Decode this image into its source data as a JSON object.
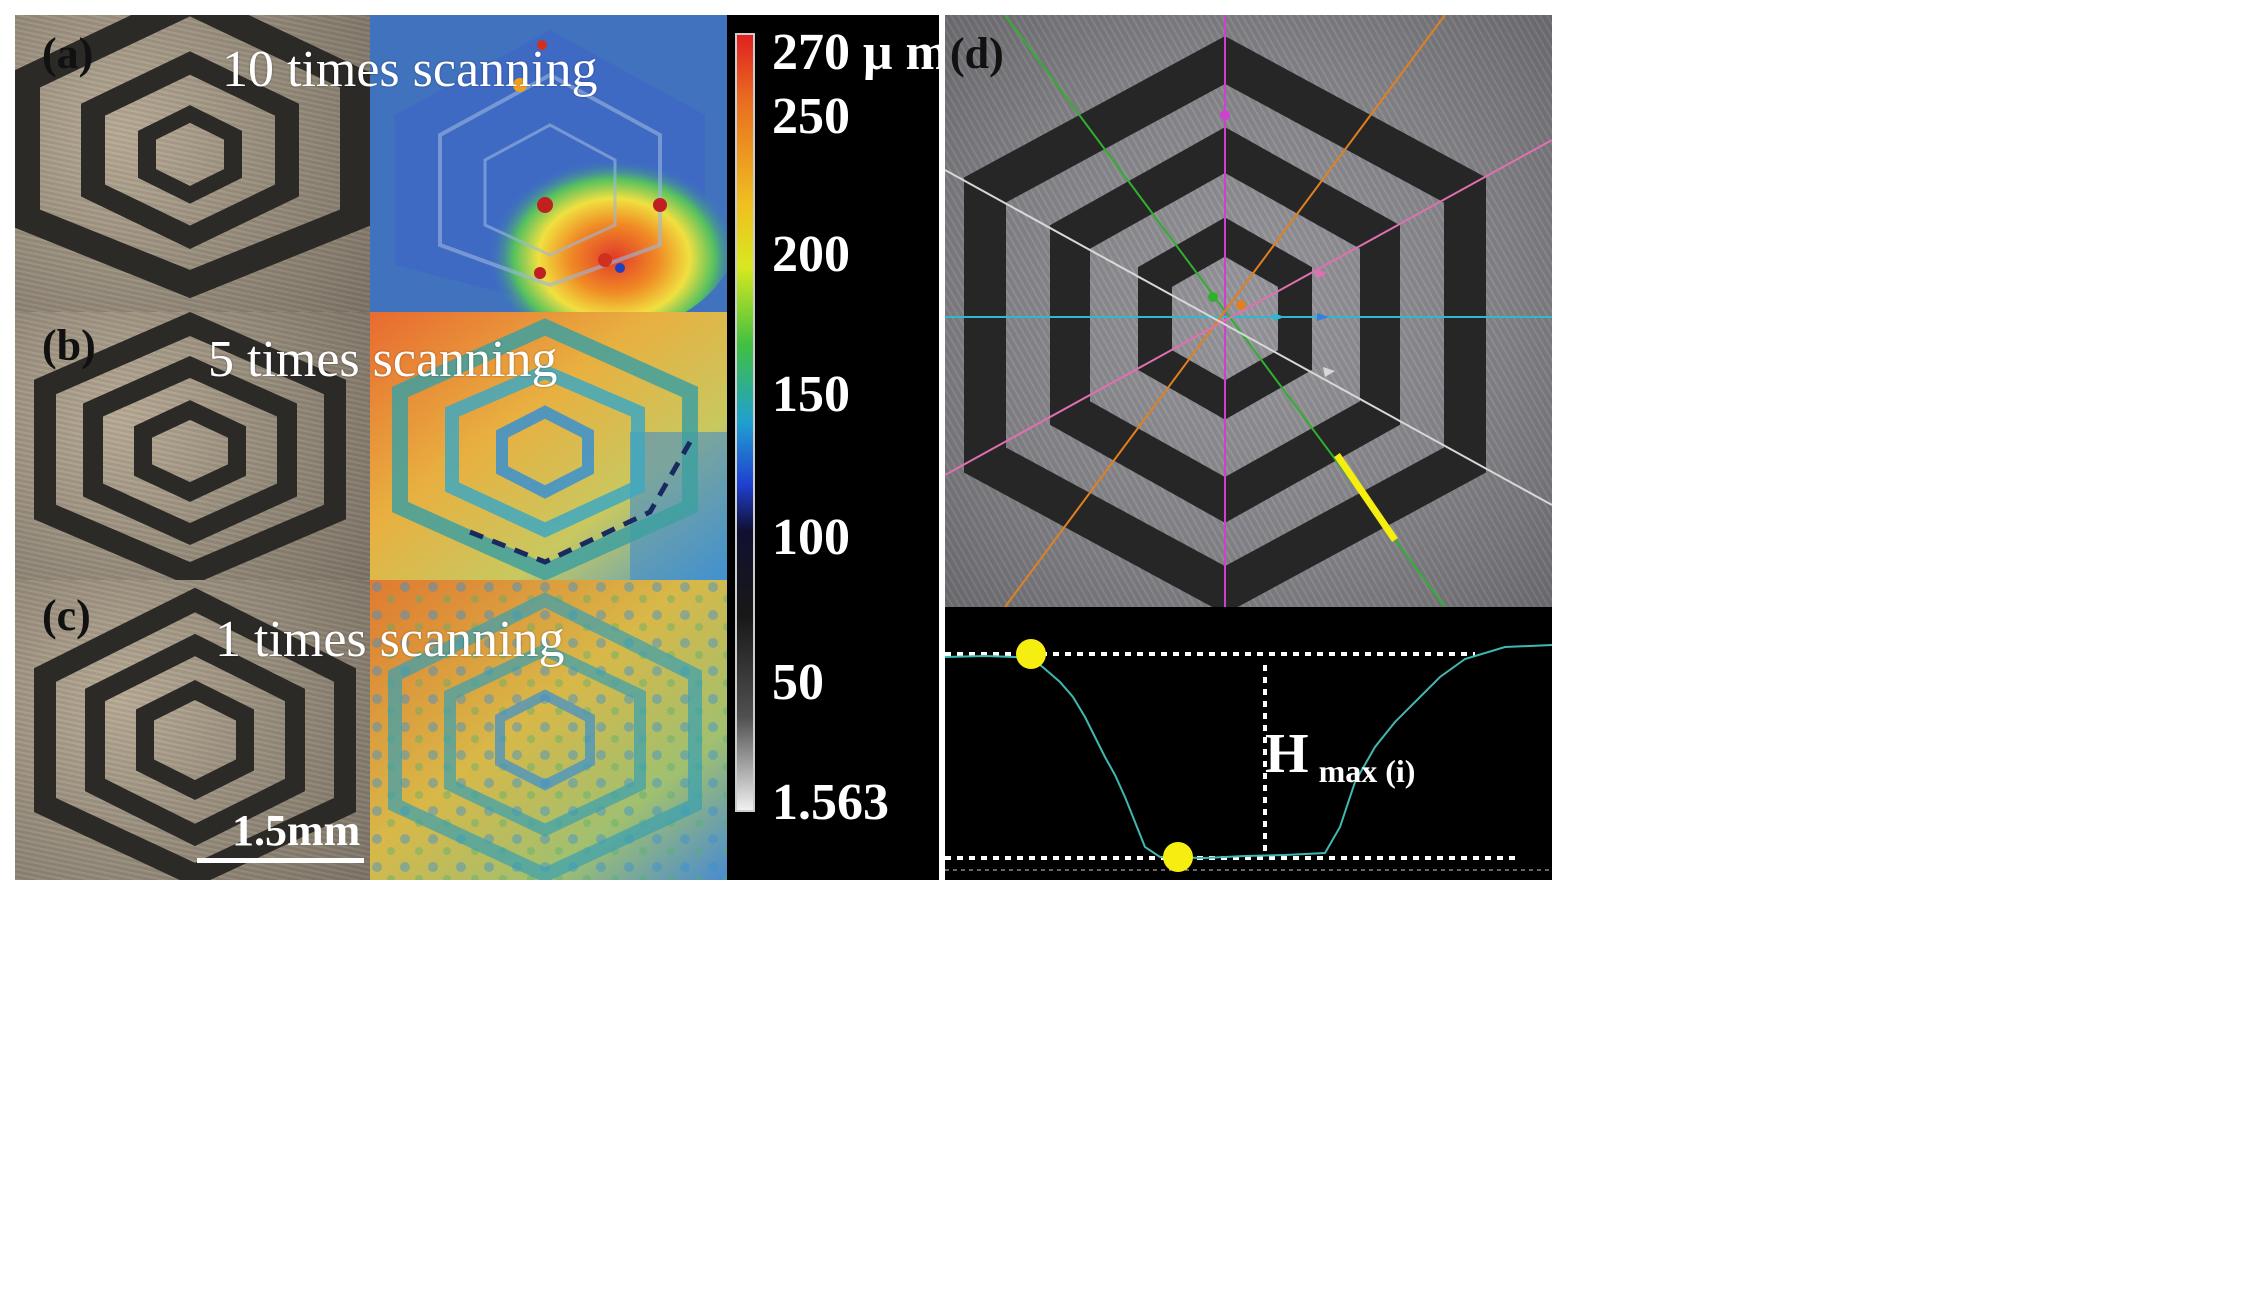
{
  "panels": {
    "a": {
      "label": "(a)",
      "title": "10 times scanning"
    },
    "b": {
      "label": "(b)",
      "title": "5 times scanning"
    },
    "c": {
      "label": "(c)",
      "title": "1 times scanning"
    },
    "d": {
      "label": "(d)"
    }
  },
  "scale_bar": {
    "text": "1.5mm"
  },
  "colorbar": {
    "ticks": [
      "270 μ m",
      "250",
      "200",
      "150",
      "100",
      "50",
      "1.563"
    ]
  },
  "profile": {
    "h_label": "H",
    "h_subscript": "max (i)"
  },
  "colors": {
    "groove": "#2c2a27",
    "profile_line": "#3fb8b0",
    "marker": "#f5ee10",
    "crosshair_vertical": "#d040d0",
    "crosshair_horizontal": "#30b8d0"
  }
}
